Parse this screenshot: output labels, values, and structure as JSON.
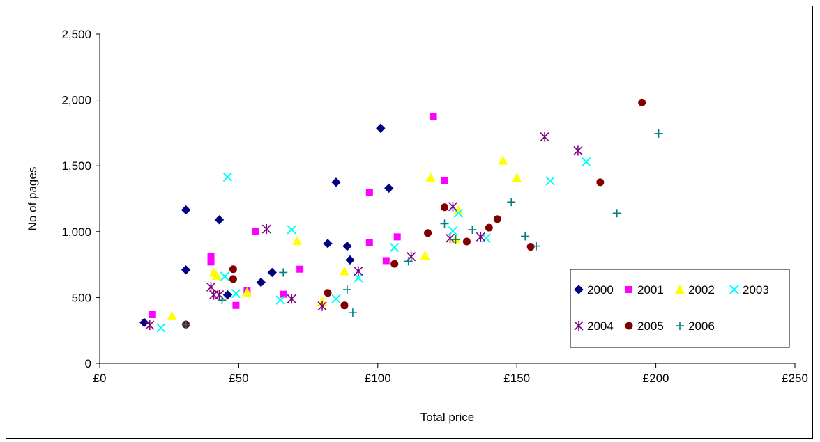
{
  "chart_data": {
    "type": "scatter",
    "title": "",
    "xlabel": "Total price",
    "ylabel": "No of pages",
    "xlim": [
      0,
      250
    ],
    "ylim": [
      0,
      2500
    ],
    "x_ticks": [
      "£0",
      "£50",
      "£100",
      "£150",
      "£200",
      "£250"
    ],
    "y_ticks": [
      "0",
      "500",
      "1,000",
      "1,500",
      "2,000",
      "2,500"
    ],
    "x_tick_values": [
      0,
      50,
      100,
      150,
      200,
      250
    ],
    "y_tick_values": [
      0,
      500,
      1000,
      1500,
      2000,
      2500
    ],
    "grid": false,
    "legend_position": "bottom-right",
    "series": [
      {
        "name": "2000",
        "color": "#000080",
        "marker": "diamond",
        "points": [
          [
            16,
            310
          ],
          [
            31,
            1165
          ],
          [
            31,
            710
          ],
          [
            43,
            1090
          ],
          [
            46,
            520
          ],
          [
            58,
            615
          ],
          [
            62,
            690
          ],
          [
            82,
            910
          ],
          [
            85,
            1375
          ],
          [
            89,
            890
          ],
          [
            90,
            785
          ],
          [
            101,
            1785
          ],
          [
            104,
            1330
          ]
        ]
      },
      {
        "name": "2001",
        "color": "#FF00FF",
        "marker": "square",
        "points": [
          [
            19,
            370
          ],
          [
            40,
            810
          ],
          [
            40,
            770
          ],
          [
            49,
            440
          ],
          [
            53,
            550
          ],
          [
            56,
            1000
          ],
          [
            66,
            525
          ],
          [
            72,
            715
          ],
          [
            97,
            1295
          ],
          [
            97,
            915
          ],
          [
            103,
            780
          ],
          [
            107,
            960
          ],
          [
            120,
            1875
          ],
          [
            124,
            1390
          ]
        ]
      },
      {
        "name": "2002",
        "color": "#FFFF00",
        "marker": "triangle",
        "points": [
          [
            26,
            360
          ],
          [
            41,
            690
          ],
          [
            42,
            665
          ],
          [
            53,
            540
          ],
          [
            71,
            930
          ],
          [
            80,
            470
          ],
          [
            88,
            700
          ],
          [
            117,
            820
          ],
          [
            119,
            1410
          ],
          [
            128,
            945
          ],
          [
            129,
            1165
          ],
          [
            145,
            1540
          ],
          [
            150,
            1410
          ]
        ]
      },
      {
        "name": "2003",
        "color": "#00FFFF",
        "marker": "x",
        "points": [
          [
            22,
            270
          ],
          [
            45,
            660
          ],
          [
            46,
            1415
          ],
          [
            49,
            530
          ],
          [
            65,
            480
          ],
          [
            69,
            1015
          ],
          [
            85,
            490
          ],
          [
            93,
            650
          ],
          [
            106,
            880
          ],
          [
            127,
            1005
          ],
          [
            129,
            1140
          ],
          [
            139,
            950
          ],
          [
            162,
            1385
          ],
          [
            175,
            1530
          ]
        ]
      },
      {
        "name": "2004",
        "color": "#800080",
        "marker": "asterisk",
        "points": [
          [
            18,
            290
          ],
          [
            40,
            580
          ],
          [
            41,
            520
          ],
          [
            43,
            520
          ],
          [
            60,
            1020
          ],
          [
            69,
            490
          ],
          [
            80,
            435
          ],
          [
            93,
            700
          ],
          [
            112,
            810
          ],
          [
            126,
            950
          ],
          [
            127,
            1190
          ],
          [
            137,
            960
          ],
          [
            160,
            1720
          ],
          [
            172,
            1615
          ]
        ]
      },
      {
        "name": "2005",
        "color": "#800000",
        "marker": "circle",
        "points": [
          [
            31,
            295
          ],
          [
            48,
            715
          ],
          [
            48,
            640
          ],
          [
            82,
            535
          ],
          [
            88,
            440
          ],
          [
            106,
            755
          ],
          [
            118,
            990
          ],
          [
            124,
            1185
          ],
          [
            132,
            925
          ],
          [
            140,
            1030
          ],
          [
            143,
            1095
          ],
          [
            155,
            885
          ],
          [
            180,
            1375
          ],
          [
            195,
            1980
          ]
        ]
      },
      {
        "name": "2006",
        "color": "#008080",
        "marker": "plus",
        "points": [
          [
            31,
            295
          ],
          [
            44,
            480
          ],
          [
            66,
            690
          ],
          [
            89,
            560
          ],
          [
            91,
            385
          ],
          [
            111,
            775
          ],
          [
            124,
            1060
          ],
          [
            128,
            940
          ],
          [
            134,
            1015
          ],
          [
            148,
            1225
          ],
          [
            153,
            965
          ],
          [
            157,
            890
          ],
          [
            186,
            1140
          ],
          [
            201,
            1745
          ]
        ]
      }
    ]
  }
}
